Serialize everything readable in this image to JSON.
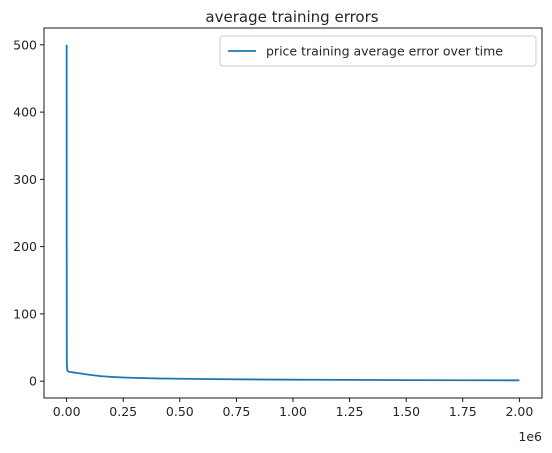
{
  "chart_data": {
    "type": "line",
    "title": "average training errors",
    "xlabel": "",
    "ylabel": "",
    "x_offset_label": "1e6",
    "xlim": [
      -0.1,
      2.1
    ],
    "ylim": [
      -25,
      525
    ],
    "x_ticks": [
      0.0,
      0.25,
      0.5,
      0.75,
      1.0,
      1.25,
      1.5,
      1.75,
      2.0
    ],
    "x_tick_labels": [
      "0.00",
      "0.25",
      "0.50",
      "0.75",
      "1.00",
      "1.25",
      "1.50",
      "1.75",
      "2.00"
    ],
    "y_ticks": [
      0,
      100,
      200,
      300,
      400,
      500
    ],
    "y_tick_labels": [
      "0",
      "100",
      "200",
      "300",
      "400",
      "500"
    ],
    "grid": false,
    "legend_position": "top-right",
    "series": [
      {
        "name": "price training average error over time",
        "color": "#1f77b4",
        "x": [
          0.0,
          0.0001,
          0.0003,
          0.0006,
          0.001,
          0.002,
          0.003,
          0.005,
          0.01,
          0.02,
          0.03,
          0.05,
          0.08,
          0.1,
          0.15,
          0.2,
          0.25,
          0.3,
          0.4,
          0.5,
          0.6,
          0.75,
          0.9,
          1.0,
          1.25,
          1.5,
          1.75,
          2.0
        ],
        "y": [
          500,
          400,
          200,
          60,
          25,
          18,
          16,
          15,
          14,
          13.5,
          13,
          12,
          10.5,
          9.5,
          7.5,
          6.3,
          5.5,
          4.9,
          4.1,
          3.6,
          3.2,
          2.8,
          2.4,
          2.2,
          1.9,
          1.6,
          1.4,
          1.3
        ]
      }
    ]
  }
}
